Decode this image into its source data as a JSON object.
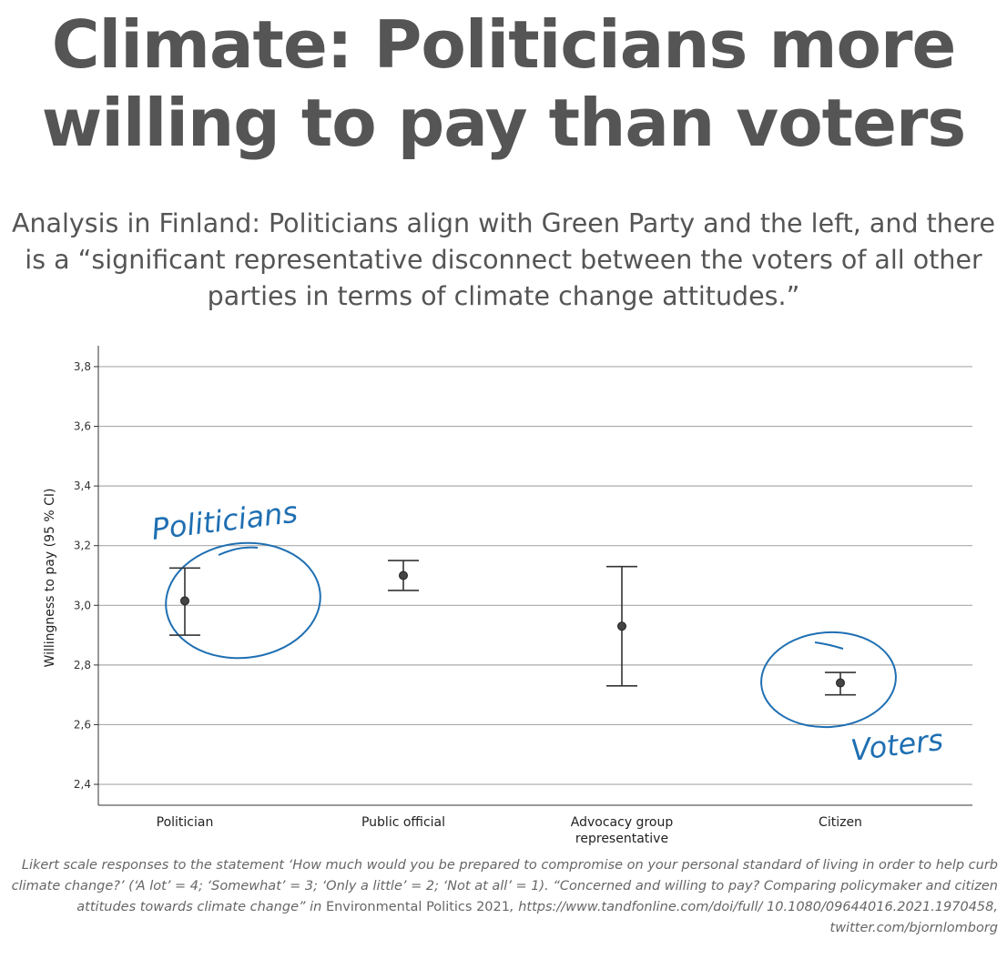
{
  "title": "Climate: Politicians more willing to pay than voters",
  "subtitle": "Analysis in Finland: Politicians align with Green Party and the left, and there is a “significant representative disconnect between the voters of all other parties in terms of climate change attitudes.”",
  "caption": {
    "part1": "Likert scale responses to the statement ‘How much would you be prepared to compromise on your personal standard of living in order to help curb climate change?’ (‘A lot’ = 4; ‘Somewhat’ = 3; ‘Only a little’ = 2; ‘Not at all’ = 1). “Concerned and willing to pay? Comparing policymaker and citizen attitudes towards climate change” in ",
    "journal": "Environmental Politics 2021",
    "part2": ", https://www.tandfonline.com/doi/full/ 10.1080/09644016.2021.1970458, twitter.com/bjornlomborg"
  },
  "annotations": {
    "politicians": "Politicians",
    "voters": "Voters",
    "color": "#1f6fb2"
  },
  "chart_data": {
    "type": "scatter",
    "categories": [
      "Politician",
      "Public official",
      "Advocacy group representative",
      "Citizen"
    ],
    "category_lines": [
      [
        "Politician"
      ],
      [
        "Public official"
      ],
      [
        "Advocacy group",
        "representative"
      ],
      [
        "Citizen"
      ]
    ],
    "means": [
      3.015,
      3.1,
      2.93,
      2.74
    ],
    "ci_low": [
      2.9,
      3.05,
      2.73,
      2.7
    ],
    "ci_high": [
      3.125,
      3.15,
      3.13,
      2.775
    ],
    "ylabel": "Willingness to pay (95 % CI)",
    "ylim": [
      2.33,
      3.87
    ],
    "yticks": [
      "2,4",
      "2,6",
      "2,8",
      "3,0",
      "3,2",
      "3,4",
      "3,6",
      "3,8"
    ],
    "ytick_values": [
      2.4,
      2.6,
      2.8,
      3.0,
      3.2,
      3.4,
      3.6,
      3.8
    ],
    "grid": true,
    "colors": {
      "marks": "#333333",
      "grid": "#aaaaaa"
    }
  }
}
